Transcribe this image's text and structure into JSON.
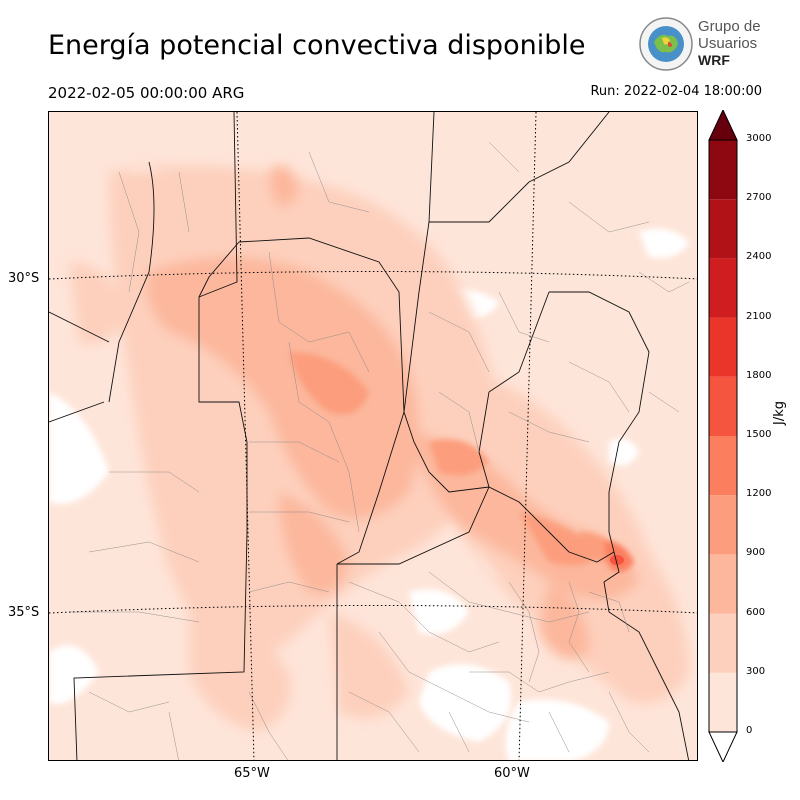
{
  "title": "Energía potencial convectiva disponible",
  "valid_time": "2022-02-05 00:00:00 ARG",
  "run_time": "Run: 2022-02-04 18:00:00",
  "logo": {
    "line1": "Grupo de",
    "line2": "Usuarios",
    "line3": "WRF"
  },
  "map": {
    "lat_labels": [
      "30°S",
      "35°S"
    ],
    "lon_labels": [
      "65°W",
      "60°W"
    ]
  },
  "colorbar": {
    "unit": "J/kg",
    "ticks": [
      "0",
      "300",
      "600",
      "900",
      "1200",
      "1500",
      "1800",
      "2100",
      "2400",
      "2700",
      "3000"
    ],
    "colors": [
      "#fee5d9",
      "#fdd0bd",
      "#fcb79c",
      "#fc9e7d",
      "#fb7f5f",
      "#f5553e",
      "#ea362a",
      "#d01d20",
      "#b11218",
      "#8e0812"
    ],
    "extend_color": "#67000d"
  }
}
